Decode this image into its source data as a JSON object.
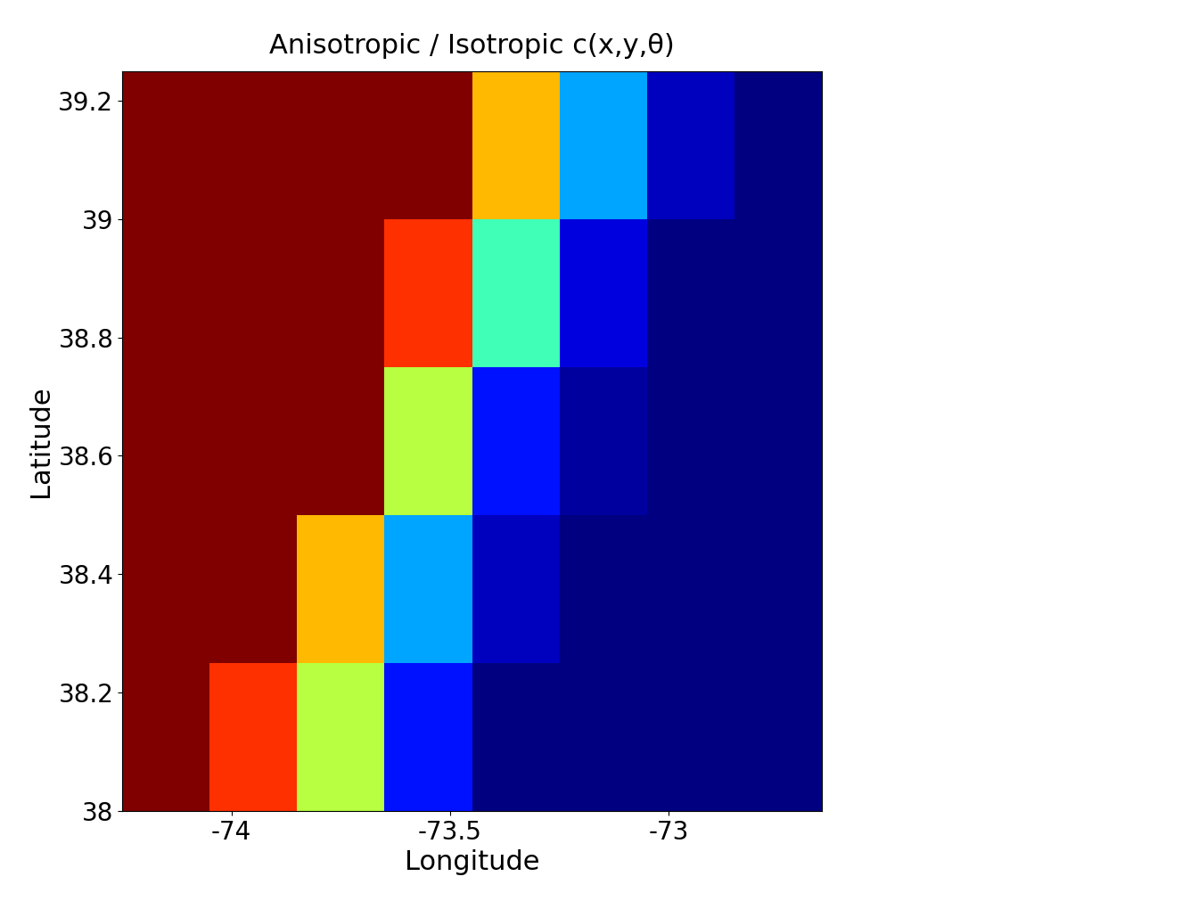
{
  "chart_data": {
    "type": "heatmap",
    "title": "Anisotropic / Isotropic c(x,y,θ)",
    "x_label": "Longitude",
    "y_label": "Latitude",
    "xlim": [
      -74.25,
      -72.65
    ],
    "ylim": [
      38,
      39.25
    ],
    "xticks": [
      -74,
      -73.5,
      -73
    ],
    "yticks": [
      38,
      38.2,
      38.4,
      38.6,
      38.8,
      39,
      39.2
    ],
    "x": [
      -74.25,
      -74.05,
      -73.85,
      -73.65,
      -73.45,
      -73.25,
      -73.05,
      -72.85,
      -72.65
    ],
    "y": [
      38,
      38.25,
      38.5,
      38.75,
      39,
      39.25
    ],
    "cells": [
      [
        1.3,
        1.25,
        1.15,
        1.0,
        0.95,
        0.95,
        0.95,
        0.95
      ],
      [
        1.3,
        1.3,
        1.2,
        1.05,
        0.97,
        0.95,
        0.95,
        0.95
      ],
      [
        1.3,
        1.3,
        1.3,
        1.15,
        1.0,
        0.96,
        0.95,
        0.95
      ],
      [
        1.3,
        1.3,
        1.3,
        1.25,
        1.1,
        0.98,
        0.95,
        0.95
      ],
      [
        1.3,
        1.3,
        1.3,
        1.3,
        1.2,
        1.05,
        0.97,
        0.95
      ]
    ]
  }
}
